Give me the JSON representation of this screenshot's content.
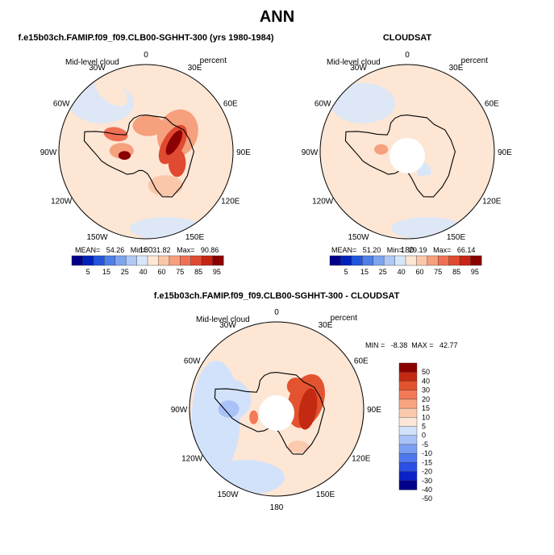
{
  "page": {
    "title": "ANN"
  },
  "panels": [
    {
      "title": "f.e15b03ch.FAMIP.f09_f09.CLB00-SGHHT-300 (yrs 1980-1984)",
      "left_label": "Mid-level cloud",
      "right_label": "percent",
      "stats": "MEAN=   54.26   Min=   31.82   Max=   90.86"
    },
    {
      "title": "CLOUDSAT",
      "left_label": "Mid-level cloud",
      "right_label": "percent",
      "stats": "MEAN=   51.20   Min=   29.19   Max=   66.14"
    },
    {
      "title": "f.e15b03ch.FAMIP.f09_f09.CLB00-SGHHT-300 - CLOUDSAT",
      "left_label": "Mid-level cloud",
      "right_label": "percent",
      "stats": "MIN =   -8.38  MAX =   42.77"
    }
  ],
  "lon_labels": [
    "0",
    "30E",
    "60E",
    "90E",
    "120E",
    "150E",
    "180",
    "150W",
    "120W",
    "90W",
    "60W",
    "30W"
  ],
  "colors": {
    "abs_scale": [
      "#00008b",
      "#0022bb",
      "#2255dd",
      "#4f7fe8",
      "#7fa5ee",
      "#afc8f4",
      "#d8e6fa",
      "#fde6d4",
      "#fbc7aa",
      "#f7a07e",
      "#f07055",
      "#e04a30",
      "#c82414",
      "#8b0000"
    ],
    "diff_scale": [
      "#00008b",
      "#0b21c8",
      "#2a4fe6",
      "#4e77ee",
      "#7b9ff3",
      "#a9c2f7",
      "#d3e2fb",
      "#fde7d6",
      "#fbcaae",
      "#f8a381",
      "#f27a58",
      "#e4532f",
      "#c42a12",
      "#8b0000"
    ]
  },
  "chart_data": [
    {
      "type": "heatmap",
      "projection": "south-polar-stereographic",
      "title": "f.e15b03ch.FAMIP.f09_f09.CLB00-SGHHT-300 (yrs 1980-1984)",
      "variable": "Mid-level cloud",
      "units": "percent",
      "colorbar_ticks": [
        5,
        15,
        25,
        40,
        60,
        75,
        85,
        95
      ],
      "mean": 54.26,
      "min": 31.82,
      "max": 90.86,
      "features": [
        {
          "lon": 60,
          "dist": 0.42,
          "rx": 0.23,
          "ry": 0.28,
          "rot": 20,
          "val": 62
        },
        {
          "lon": 75,
          "dist": 0.32,
          "rx": 0.12,
          "ry": 0.25,
          "rot": 30,
          "val": 78
        },
        {
          "lon": 72,
          "dist": 0.34,
          "rx": 0.06,
          "ry": 0.16,
          "rot": 30,
          "val": 90
        },
        {
          "lon": 110,
          "dist": 0.38,
          "rx": 0.1,
          "ry": 0.16,
          "rot": 0,
          "val": 75
        },
        {
          "lon": 5,
          "dist": 0.3,
          "rx": 0.18,
          "ry": 0.12,
          "rot": 0,
          "val": 68
        },
        {
          "lon": -60,
          "dist": 0.4,
          "rx": 0.14,
          "ry": 0.08,
          "rot": 10,
          "val": 70
        },
        {
          "lon": -88,
          "dist": 0.28,
          "rx": 0.14,
          "ry": 0.09,
          "rot": 0,
          "val": 68
        },
        {
          "lon": -100,
          "dist": 0.25,
          "rx": 0.07,
          "ry": 0.05,
          "rot": 0,
          "val": 85
        },
        {
          "lon": 150,
          "dist": 0.45,
          "rx": 0.2,
          "ry": 0.12,
          "rot": 0,
          "val": 58
        },
        {
          "lon": -30,
          "dist": 0.8,
          "rx": 0.22,
          "ry": 0.12,
          "rot": 40,
          "val": 48
        },
        {
          "lon": -120,
          "dist": 0.72,
          "rx": 0.16,
          "ry": 0.1,
          "rot": 0,
          "val": 45
        }
      ]
    },
    {
      "type": "heatmap",
      "projection": "south-polar-stereographic",
      "title": "CLOUDSAT",
      "variable": "Mid-level cloud",
      "units": "percent",
      "colorbar_ticks": [
        5,
        15,
        25,
        40,
        60,
        75,
        85,
        95
      ],
      "mean": 51.2,
      "min": 29.19,
      "max": 66.14,
      "features": [
        {
          "lon": -90,
          "dist": 0.7,
          "rx": 0.3,
          "ry": 0.3,
          "rot": 0,
          "val": 48
        },
        {
          "lon": 30,
          "dist": 0.55,
          "rx": 0.3,
          "ry": 0.25,
          "rot": 0,
          "val": 48
        },
        {
          "lon": 150,
          "dist": 0.45,
          "rx": 0.18,
          "ry": 0.12,
          "rot": 0,
          "val": 45
        },
        {
          "lon": 140,
          "dist": 0.3,
          "rx": 0.08,
          "ry": 0.1,
          "rot": 0,
          "val": 32
        },
        {
          "lon": -85,
          "dist": 0.3,
          "rx": 0.08,
          "ry": 0.06,
          "rot": 0,
          "val": 64
        },
        {
          "lon": -120,
          "dist": 0.75,
          "rx": 0.1,
          "ry": 0.08,
          "rot": 0,
          "val": 44
        }
      ]
    },
    {
      "type": "heatmap",
      "projection": "south-polar-stereographic",
      "title": "f.e15b03ch.FAMIP.f09_f09.CLB00-SGHHT-300 - CLOUDSAT",
      "variable": "Mid-level cloud",
      "units": "percent",
      "colorbar_ticks": [
        50,
        40,
        30,
        20,
        15,
        10,
        5,
        0,
        -5,
        -10,
        -15,
        -20,
        -30,
        -40,
        -50
      ],
      "min": -8.38,
      "max": 42.77,
      "features": [
        {
          "lon": 75,
          "dist": 0.35,
          "rx": 0.2,
          "ry": 0.32,
          "rot": 20,
          "val": 25
        },
        {
          "lon": 90,
          "dist": 0.36,
          "rx": 0.1,
          "ry": 0.24,
          "rot": 10,
          "val": 36
        },
        {
          "lon": 40,
          "dist": 0.34,
          "rx": 0.1,
          "ry": 0.1,
          "rot": 0,
          "val": 22
        },
        {
          "lon": -110,
          "dist": 0.28,
          "rx": 0.05,
          "ry": 0.08,
          "rot": 0,
          "val": 18
        },
        {
          "lon": -80,
          "dist": 0.6,
          "rx": 0.3,
          "ry": 0.25,
          "rot": 0,
          "val": -4
        },
        {
          "lon": -90,
          "dist": 0.55,
          "rx": 0.12,
          "ry": 0.1,
          "rot": 0,
          "val": -7
        },
        {
          "lon": 150,
          "dist": 0.5,
          "rx": 0.12,
          "ry": 0.07,
          "rot": 0,
          "val": 8
        }
      ]
    }
  ]
}
